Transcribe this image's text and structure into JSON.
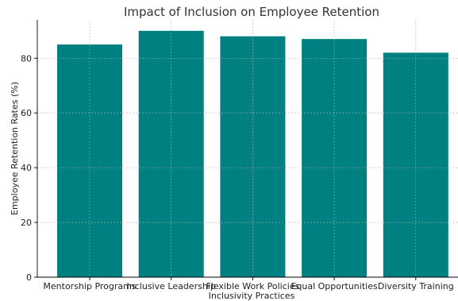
{
  "colors": {
    "bar": "#008080",
    "background": "#ffffff"
  },
  "chart_data": {
    "type": "bar",
    "title": "Impact of Inclusion on Employee Retention",
    "xlabel": "Inclusivity Practices",
    "ylabel": "Employee Retention Rates (%)",
    "categories": [
      "Mentorship Programs",
      "Inclusive Leadership",
      "Flexible Work Policies",
      "Equal Opportunities",
      "Diversity Training"
    ],
    "values": [
      85,
      90,
      88,
      87,
      82
    ],
    "ylim": [
      0,
      94
    ],
    "yticks": [
      0,
      20,
      40,
      60,
      80
    ],
    "grid": true
  }
}
